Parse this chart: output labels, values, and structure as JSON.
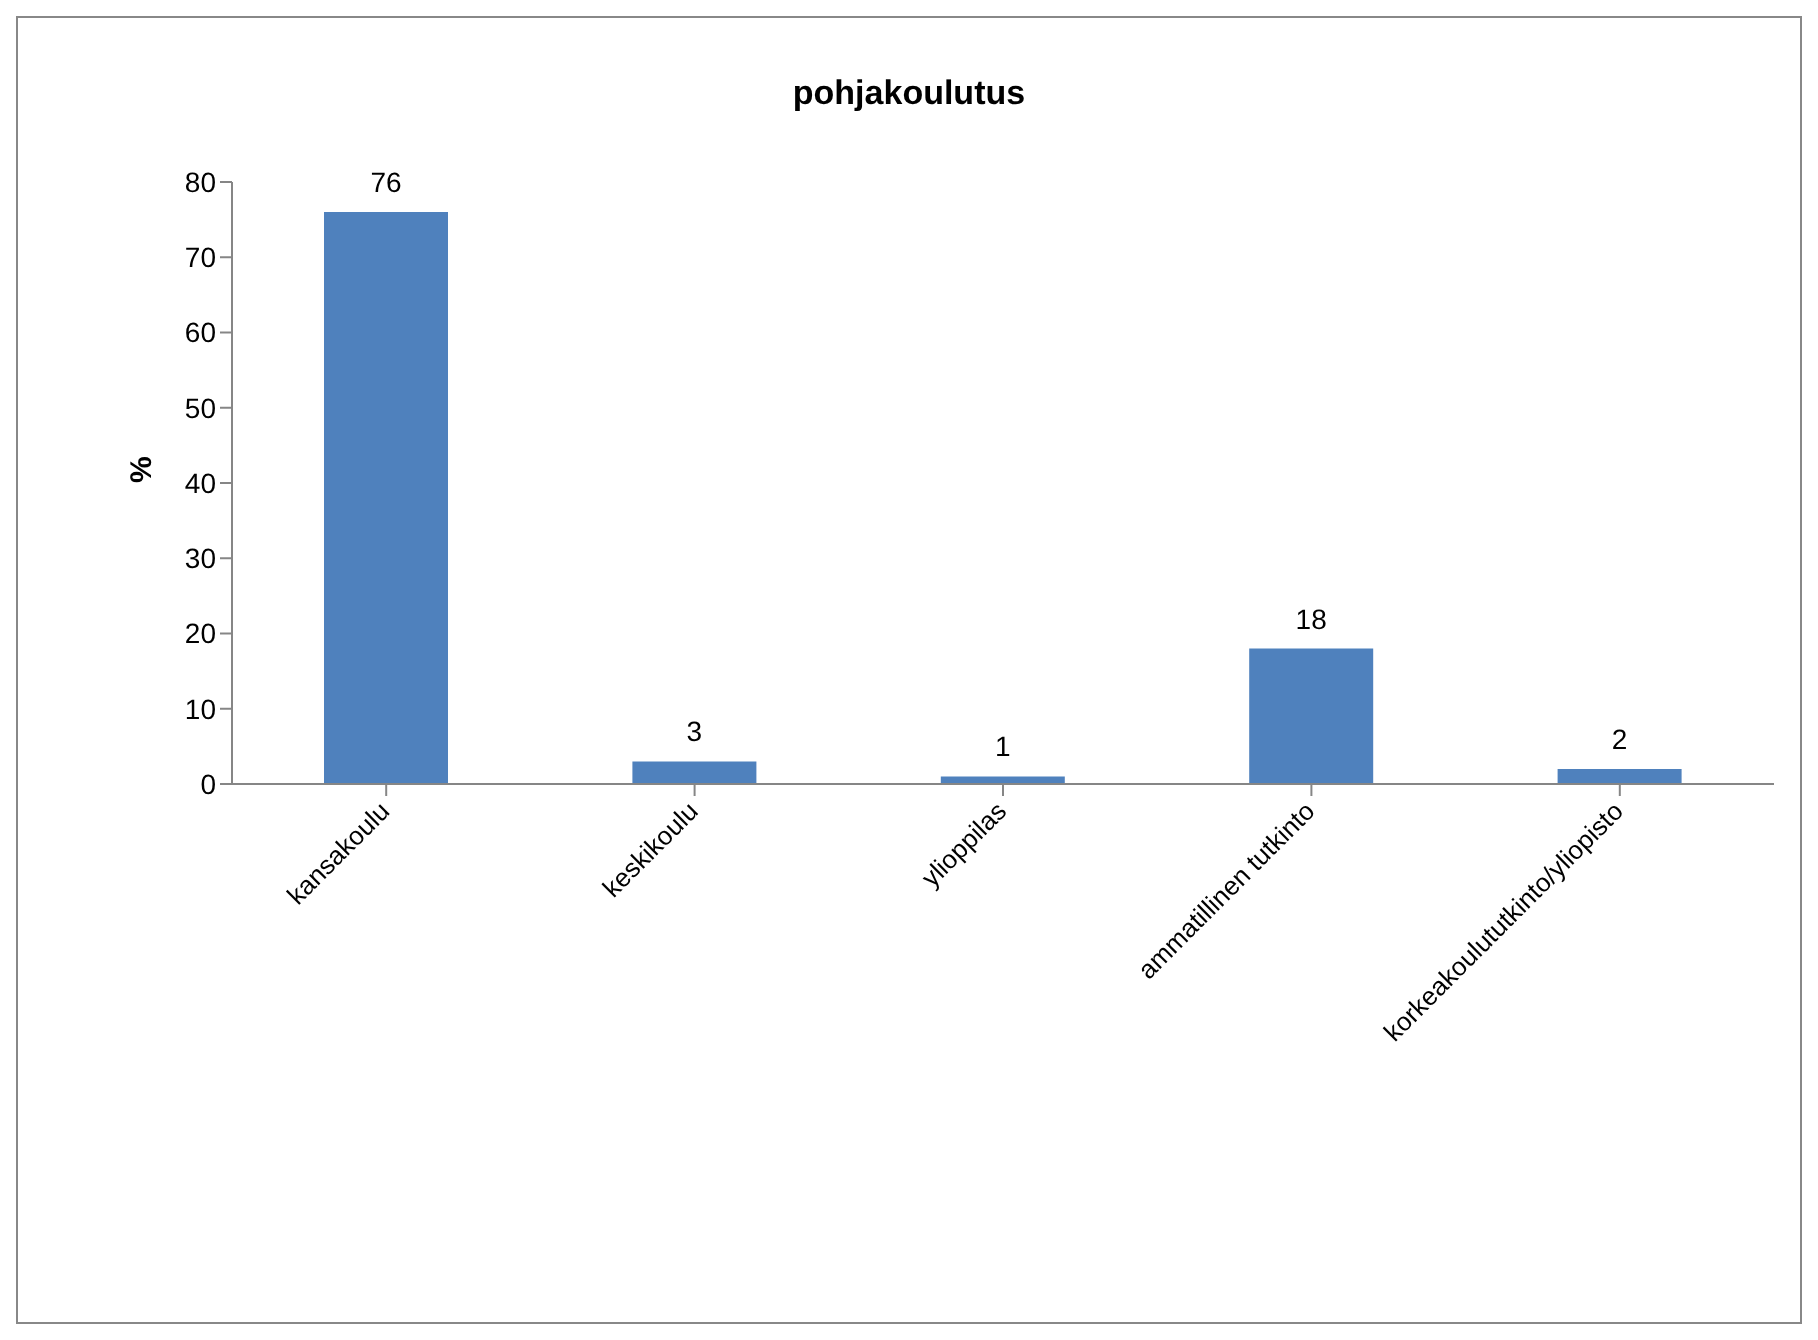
{
  "chart_data": {
    "type": "bar",
    "title": "pohjakoulutus",
    "ylabel": "%",
    "categories": [
      "kansakoulu",
      "keskikoulu",
      "ylioppilas",
      "ammatillinen tutkinto",
      "korkeakoulututkinto/yliopisto"
    ],
    "values": [
      76,
      3,
      1,
      18,
      2
    ],
    "color": "#4f81bd",
    "ylim": [
      0,
      80
    ],
    "yticks": [
      0,
      10,
      20,
      30,
      40,
      50,
      60,
      70,
      80
    ],
    "grid": false,
    "data_labels": true,
    "legend": false
  }
}
